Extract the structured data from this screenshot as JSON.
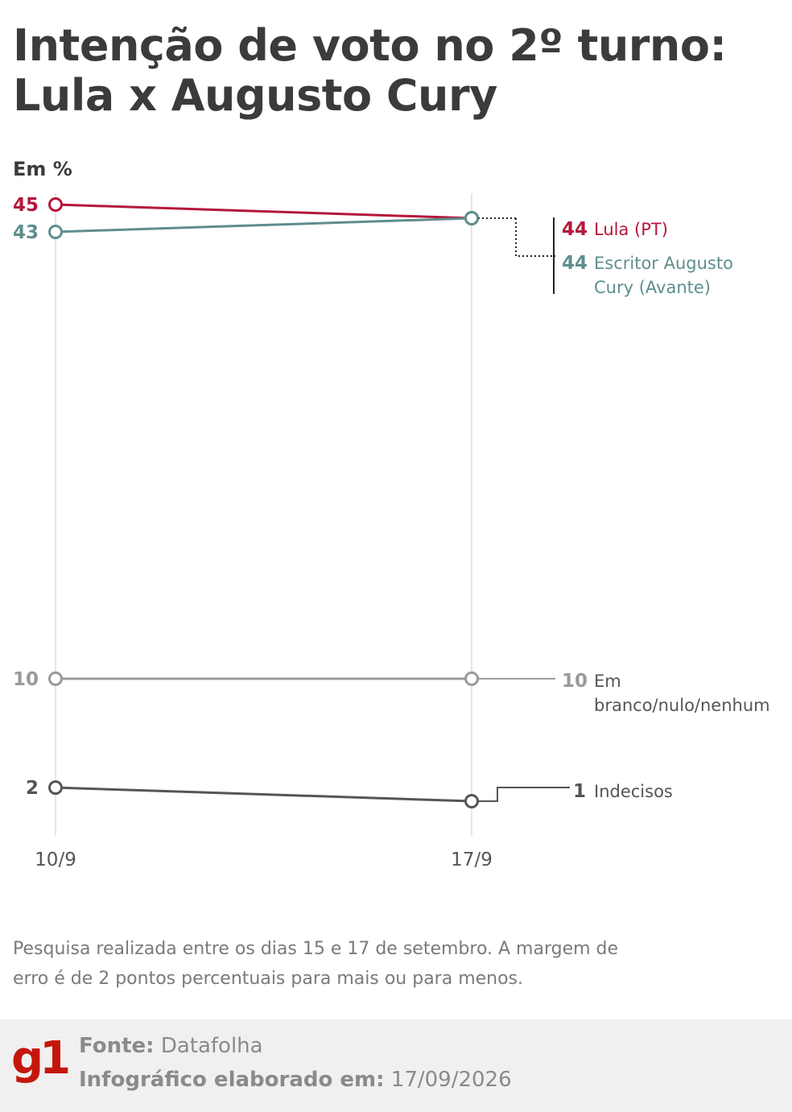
{
  "title": "Intenção de voto no 2º turno: Lula x Augusto Cury",
  "unit_label": "Em %",
  "note": "Pesquisa realizada entre os dias 15 e 17 de setembro. A margem de erro é de 2 pontos percentuais para mais ou para menos.",
  "footer": {
    "logo": "g1",
    "source_label": "Fonte:",
    "source_value": "Datafolha",
    "made_label": "Infográfico elaborado em:",
    "made_value": "17/09/2026"
  },
  "chart_data": {
    "type": "line",
    "title": "Intenção de voto no 2º turno: Lula x Augusto Cury",
    "ylabel": "Em %",
    "x": [
      "10/9",
      "17/9"
    ],
    "series": [
      {
        "name": "Lula (PT)",
        "values": [
          45,
          44
        ],
        "color": "#b5173c"
      },
      {
        "name": "Escritor Augusto Cury (Avante)",
        "values": [
          43,
          44
        ],
        "color": "#5f8e8e"
      },
      {
        "name": "Em branco/nulo/nenhum",
        "values": [
          10,
          10
        ],
        "color": "#9a9a9a"
      },
      {
        "name": "Indecisos",
        "values": [
          2,
          1
        ],
        "color": "#555555"
      }
    ]
  }
}
